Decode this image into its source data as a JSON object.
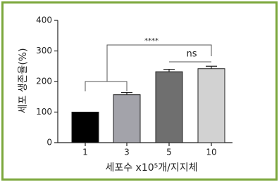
{
  "chart_data": {
    "type": "bar",
    "categories": [
      "1",
      "3",
      "5",
      "10"
    ],
    "values": [
      100,
      157,
      232,
      242
    ],
    "errors": [
      null,
      7,
      8,
      8
    ],
    "colors": [
      "#000000",
      "#a3a3aa",
      "#6f6f6f",
      "#d2d2d2"
    ],
    "ylim": [
      0,
      400
    ],
    "yticks": [
      0,
      100,
      200,
      300,
      400
    ],
    "y_label": "세포 생존율(%)",
    "x_label": "세포수 x10⁵개/지지체",
    "annotations": [
      "****",
      "ns"
    ]
  }
}
